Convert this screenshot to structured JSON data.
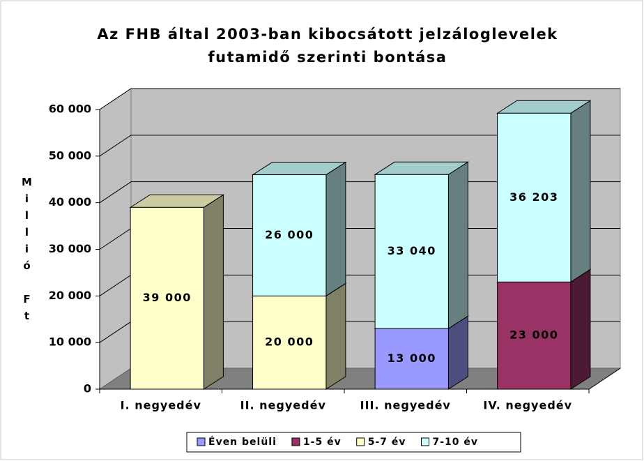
{
  "chart_data": {
    "type": "bar3d_stacked",
    "title": "Az FHB által 2003-ban kibocsátott jelzáloglevelek",
    "subtitle": "futamidő szerinti bontása",
    "y_label": "Millió Ft",
    "categories": [
      "I. negyedév",
      "II. negyedév",
      "III. negyedév",
      "IV. negyedév"
    ],
    "series": [
      {
        "name": "Éven belüli",
        "color": "#9999ff",
        "values": [
          null,
          null,
          13000,
          null
        ],
        "value_labels": [
          null,
          null,
          "13 000",
          null
        ]
      },
      {
        "name": "1-5 év",
        "color": "#993366",
        "values": [
          null,
          null,
          null,
          23000
        ],
        "value_labels": [
          null,
          null,
          null,
          "23 000"
        ]
      },
      {
        "name": "5-7 év",
        "color": "#ffffcc",
        "values": [
          39000,
          20000,
          null,
          null
        ],
        "value_labels": [
          "39 000",
          "20 000",
          null,
          null
        ]
      },
      {
        "name": "7-10 év",
        "color": "#ccffff",
        "values": [
          null,
          26000,
          33040,
          36203
        ],
        "value_labels": [
          null,
          "26 000",
          "33 040",
          "36 203"
        ]
      }
    ],
    "ylim": [
      0,
      60000
    ],
    "yticks": [
      0,
      {
        "value": 10000,
        "label": "10 000"
      },
      {
        "value": 20000,
        "label": "20 000"
      },
      {
        "value": 30000,
        "label": "30 000"
      },
      {
        "value": 40000,
        "label": "40 000"
      },
      {
        "value": 50000,
        "label": "50 000"
      },
      {
        "value": 60000,
        "label": "60 000"
      }
    ],
    "grid": true,
    "legend": "bottom"
  }
}
